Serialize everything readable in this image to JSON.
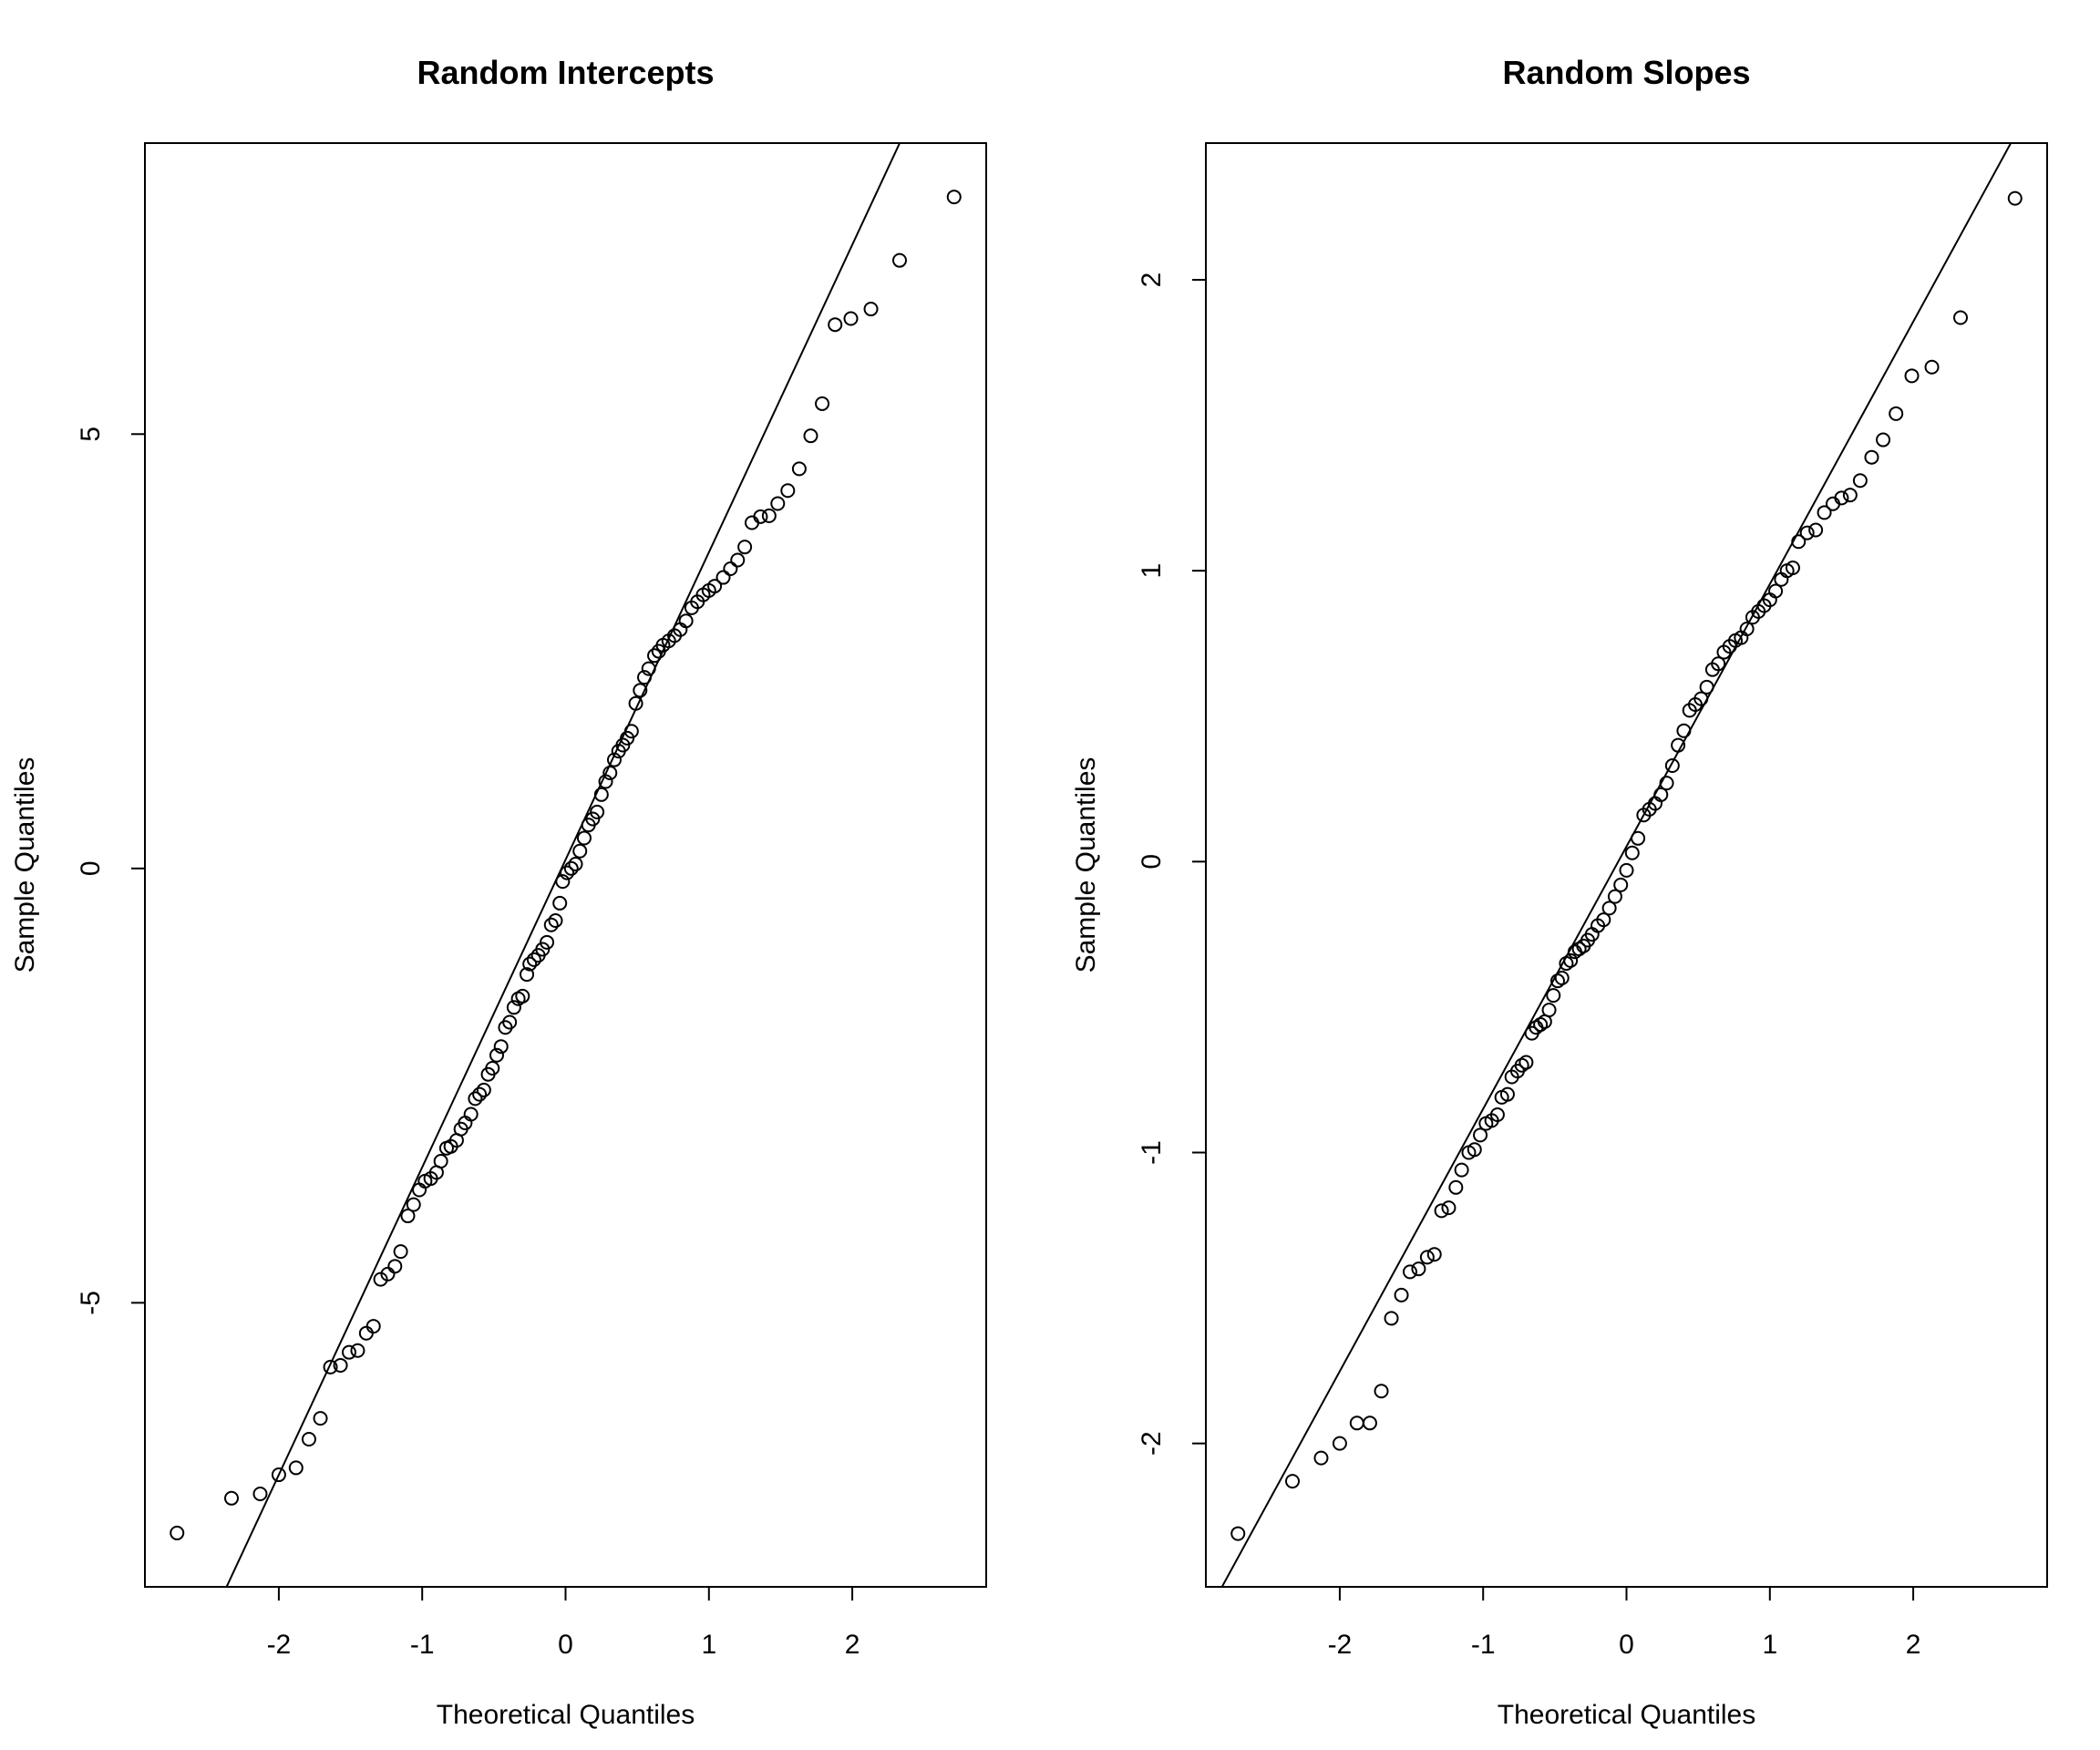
{
  "chart_data": [
    {
      "type": "scatter",
      "title": "Random Intercepts",
      "x_label": "Theoretical Quantiles",
      "y_label": "Sample Quantiles",
      "xlim": [
        -2.934,
        2.934
      ],
      "ylim": [
        -8.27,
        8.35
      ],
      "xticks": [
        -2,
        -1,
        0,
        1,
        2
      ],
      "yticks": [
        -5,
        0,
        5
      ],
      "reference_line": {
        "intercept": 0.1,
        "slope": 3.54
      },
      "color": "#000000",
      "x": [
        -2.71,
        -2.33,
        -2.13,
        -2.0,
        -1.88,
        -1.79,
        -1.71,
        -1.64,
        -1.57,
        -1.51,
        -1.45,
        -1.39,
        -1.34,
        -1.29,
        -1.24,
        -1.19,
        -1.15,
        -1.1,
        -1.06,
        -1.02,
        -0.98,
        -0.94,
        -0.9,
        -0.87,
        -0.83,
        -0.8,
        -0.76,
        -0.73,
        -0.7,
        -0.66,
        -0.63,
        -0.6,
        -0.57,
        -0.54,
        -0.51,
        -0.48,
        -0.45,
        -0.42,
        -0.39,
        -0.36,
        -0.33,
        -0.3,
        -0.27,
        -0.25,
        -0.22,
        -0.19,
        -0.16,
        -0.13,
        -0.1,
        -0.07,
        -0.04,
        -0.02,
        0.01,
        0.04,
        0.07,
        0.1,
        0.13,
        0.16,
        0.19,
        0.22,
        0.25,
        0.28,
        0.31,
        0.34,
        0.37,
        0.4,
        0.43,
        0.46,
        0.49,
        0.52,
        0.55,
        0.58,
        0.62,
        0.65,
        0.68,
        0.72,
        0.76,
        0.8,
        0.84,
        0.88,
        0.92,
        0.96,
        1.0,
        1.04,
        1.1,
        1.15,
        1.2,
        1.25,
        1.3,
        1.36,
        1.42,
        1.48,
        1.55,
        1.63,
        1.71,
        1.79,
        1.88,
        1.99,
        2.13,
        2.33,
        2.71
      ],
      "values": [
        -7.65,
        -7.25,
        -7.2,
        -6.98,
        -6.9,
        -6.57,
        -6.33,
        -5.74,
        -5.72,
        -5.57,
        -5.55,
        -5.35,
        -5.27,
        -4.73,
        -4.67,
        -4.58,
        -4.41,
        -4.0,
        -3.87,
        -3.7,
        -3.6,
        -3.57,
        -3.5,
        -3.37,
        -3.22,
        -3.2,
        -3.13,
        -3.0,
        -2.93,
        -2.83,
        -2.65,
        -2.6,
        -2.55,
        -2.37,
        -2.3,
        -2.15,
        -2.05,
        -1.83,
        -1.77,
        -1.6,
        -1.5,
        -1.47,
        -1.22,
        -1.1,
        -1.05,
        -1.0,
        -0.93,
        -0.85,
        -0.65,
        -0.6,
        -0.4,
        -0.15,
        -0.05,
        0.0,
        0.05,
        0.2,
        0.35,
        0.5,
        0.57,
        0.65,
        0.85,
        1.0,
        1.1,
        1.25,
        1.35,
        1.42,
        1.5,
        1.58,
        1.9,
        2.05,
        2.2,
        2.3,
        2.45,
        2.5,
        2.57,
        2.62,
        2.68,
        2.75,
        2.85,
        3.0,
        3.07,
        3.15,
        3.2,
        3.25,
        3.35,
        3.45,
        3.55,
        3.7,
        3.98,
        4.05,
        4.06,
        4.2,
        4.35,
        4.6,
        4.98,
        5.35,
        6.26,
        6.33,
        6.44,
        7.0,
        7.73
      ]
    },
    {
      "type": "scatter",
      "title": "Random Slopes",
      "x_label": "Theoretical Quantiles",
      "y_label": "Sample Quantiles",
      "xlim": [
        -2.934,
        2.934
      ],
      "ylim": [
        -2.493,
        2.47
      ],
      "xticks": [
        -2,
        -1,
        0,
        1,
        2
      ],
      "yticks": [
        -2,
        -1,
        0,
        1,
        2
      ],
      "reference_line": {
        "intercept": 0.052,
        "slope": 0.902
      },
      "color": "#000000",
      "x": [
        -2.71,
        -2.33,
        -2.13,
        -2.0,
        -1.88,
        -1.79,
        -1.71,
        -1.64,
        -1.57,
        -1.51,
        -1.45,
        -1.39,
        -1.34,
        -1.29,
        -1.24,
        -1.19,
        -1.15,
        -1.1,
        -1.06,
        -1.02,
        -0.98,
        -0.94,
        -0.9,
        -0.87,
        -0.83,
        -0.8,
        -0.76,
        -0.73,
        -0.7,
        -0.66,
        -0.63,
        -0.6,
        -0.57,
        -0.54,
        -0.51,
        -0.48,
        -0.45,
        -0.42,
        -0.39,
        -0.36,
        -0.33,
        -0.3,
        -0.27,
        -0.24,
        -0.2,
        -0.16,
        -0.12,
        -0.08,
        -0.04,
        0.0,
        0.04,
        0.08,
        0.12,
        0.16,
        0.2,
        0.24,
        0.28,
        0.32,
        0.36,
        0.4,
        0.44,
        0.48,
        0.52,
        0.56,
        0.6,
        0.64,
        0.68,
        0.72,
        0.76,
        0.8,
        0.84,
        0.88,
        0.92,
        0.96,
        1.0,
        1.04,
        1.08,
        1.12,
        1.16,
        1.2,
        1.26,
        1.32,
        1.38,
        1.44,
        1.5,
        1.56,
        1.63,
        1.71,
        1.79,
        1.88,
        1.99,
        2.13,
        2.33,
        2.71
      ],
      "values": [
        -2.31,
        -2.13,
        -2.05,
        -2.0,
        -1.93,
        -1.93,
        -1.82,
        -1.57,
        -1.49,
        -1.41,
        -1.4,
        -1.36,
        -1.35,
        -1.2,
        -1.19,
        -1.12,
        -1.06,
        -1.0,
        -0.99,
        -0.94,
        -0.9,
        -0.89,
        -0.87,
        -0.81,
        -0.8,
        -0.74,
        -0.72,
        -0.7,
        -0.69,
        -0.59,
        -0.57,
        -0.56,
        -0.55,
        -0.51,
        -0.46,
        -0.41,
        -0.4,
        -0.35,
        -0.34,
        -0.31,
        -0.3,
        -0.29,
        -0.27,
        -0.25,
        -0.22,
        -0.2,
        -0.16,
        -0.12,
        -0.08,
        -0.03,
        0.03,
        0.08,
        0.16,
        0.18,
        0.2,
        0.23,
        0.27,
        0.33,
        0.4,
        0.45,
        0.52,
        0.54,
        0.56,
        0.6,
        0.66,
        0.68,
        0.72,
        0.74,
        0.76,
        0.77,
        0.8,
        0.84,
        0.86,
        0.88,
        0.9,
        0.93,
        0.97,
        1.0,
        1.01,
        1.1,
        1.13,
        1.14,
        1.2,
        1.23,
        1.25,
        1.26,
        1.31,
        1.39,
        1.45,
        1.54,
        1.67,
        1.7,
        1.87,
        2.28
      ]
    }
  ]
}
